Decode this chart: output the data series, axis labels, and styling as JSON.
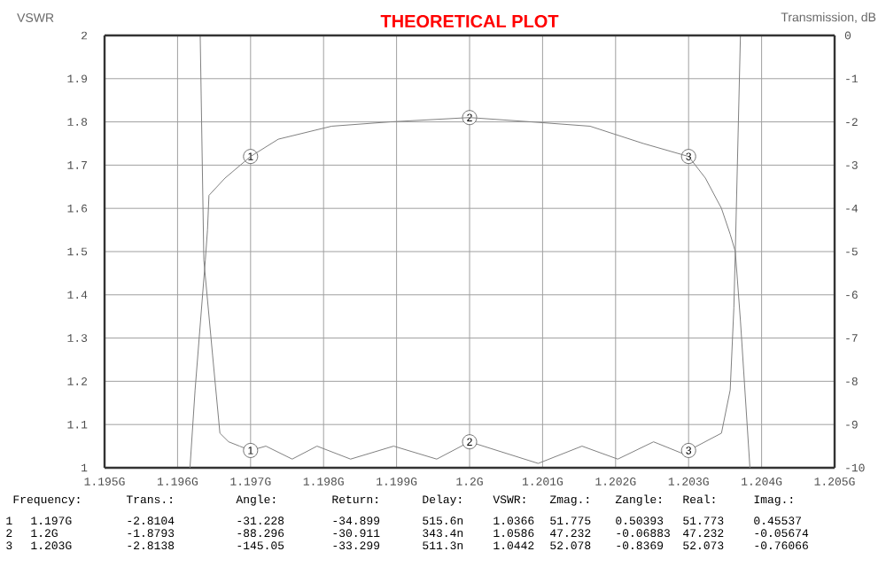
{
  "chart_data": {
    "type": "line",
    "title": "THEORETICAL PLOT",
    "ylabel": "VSWR",
    "y2label": "Transmission, dB",
    "xlim": [
      1.195,
      1.205
    ],
    "xticks": [
      {
        "value": 1.195,
        "label": "1.195G"
      },
      {
        "value": 1.196,
        "label": "1.196G"
      },
      {
        "value": 1.197,
        "label": "1.197G"
      },
      {
        "value": 1.198,
        "label": "1.198G"
      },
      {
        "value": 1.199,
        "label": "1.199G"
      },
      {
        "value": 1.2,
        "label": "1.2G"
      },
      {
        "value": 1.201,
        "label": "1.201G"
      },
      {
        "value": 1.202,
        "label": "1.202G"
      },
      {
        "value": 1.203,
        "label": "1.203G"
      },
      {
        "value": 1.204,
        "label": "1.204G"
      },
      {
        "value": 1.205,
        "label": "1.205G"
      }
    ],
    "ylim": [
      1,
      2
    ],
    "yticks": [
      1,
      1.1,
      1.2,
      1.3,
      1.4,
      1.5,
      1.6,
      1.7,
      1.8,
      1.9,
      2
    ],
    "y2lim": [
      -10,
      0
    ],
    "y2ticks": [
      -10,
      -9,
      -8,
      -7,
      -6,
      -5,
      -4,
      -3,
      -2,
      -1,
      0
    ],
    "grid": true,
    "series": [
      {
        "color": "#808080",
        "x": [
          1.19631,
          1.19636,
          1.19648,
          1.19658,
          1.1967,
          1.19685,
          1.197,
          1.19721,
          1.19757,
          1.19791,
          1.19837,
          1.19896,
          1.19955,
          1.2,
          1.20094,
          1.20154,
          1.20203,
          1.20252,
          1.20296,
          1.203,
          1.20345,
          1.20357,
          1.20362,
          1.20364,
          1.20371
        ],
        "values": [
          2,
          1.48,
          1.26,
          1.08,
          1.06,
          1.05,
          1.04,
          1.05,
          1.02,
          1.05,
          1.02,
          1.05,
          1.02,
          1.06,
          1.01,
          1.05,
          1.02,
          1.06,
          1.03,
          1.04,
          1.08,
          1.18,
          1.37,
          1.5,
          2
        ]
      },
      {
        "axis": "y2",
        "color": "#808080",
        "x": [
          1.19617,
          1.19624,
          1.19638,
          1.19641,
          1.19643,
          1.19665,
          1.197,
          1.19738,
          1.19811,
          1.19891,
          1.2,
          1.20085,
          1.20165,
          1.20238,
          1.203,
          1.20323,
          1.20345,
          1.20357,
          1.20364,
          1.20371,
          1.20384
        ],
        "values": [
          -10,
          -8.2,
          -5.2,
          -4.5,
          -3.7,
          -3.3,
          -2.8,
          -2.4,
          -2.1,
          -2,
          -1.9,
          -2,
          -2.1,
          -2.5,
          -2.8,
          -3.3,
          -4,
          -4.6,
          -5,
          -6.6,
          -10
        ]
      }
    ],
    "annotations": [
      "Frequency:",
      "Trans.:",
      "Angle:",
      "Return:",
      "Delay:",
      "VSWR:",
      "Zmag.:",
      "Zangle:",
      "Real:",
      "Imag.:",
      "1",
      "1.197G",
      "-2.8104",
      "-31.228",
      "-34.899",
      "515.6n",
      "1.0366",
      "51.775",
      "0.50393",
      "51.773",
      "0.45537",
      "2",
      "1.2G",
      "-1.8793",
      "-88.296",
      "-30.911",
      "343.4n",
      "1.0586",
      "47.232",
      "-0.06883",
      "47.232",
      "-0.05674",
      "3",
      "1.203G",
      "-2.8138",
      "-145.05",
      "-33.299",
      "511.3n",
      "1.0442",
      "52.078",
      "-0.8369",
      "52.073",
      "-0.76066",
      {
        "text": "1",
        "x": 1.197,
        "y": 1.04
      },
      {
        "text": "2",
        "x": 1.2,
        "y": 1.06
      },
      {
        "text": "3",
        "x": 1.203,
        "y": 1.04
      },
      {
        "text": "1",
        "x": 1.197,
        "y": 1.72
      },
      {
        "text": "2",
        "x": 1.2,
        "y": 1.81
      },
      {
        "text": "3",
        "x": 1.203,
        "y": 1.72
      }
    ]
  }
}
